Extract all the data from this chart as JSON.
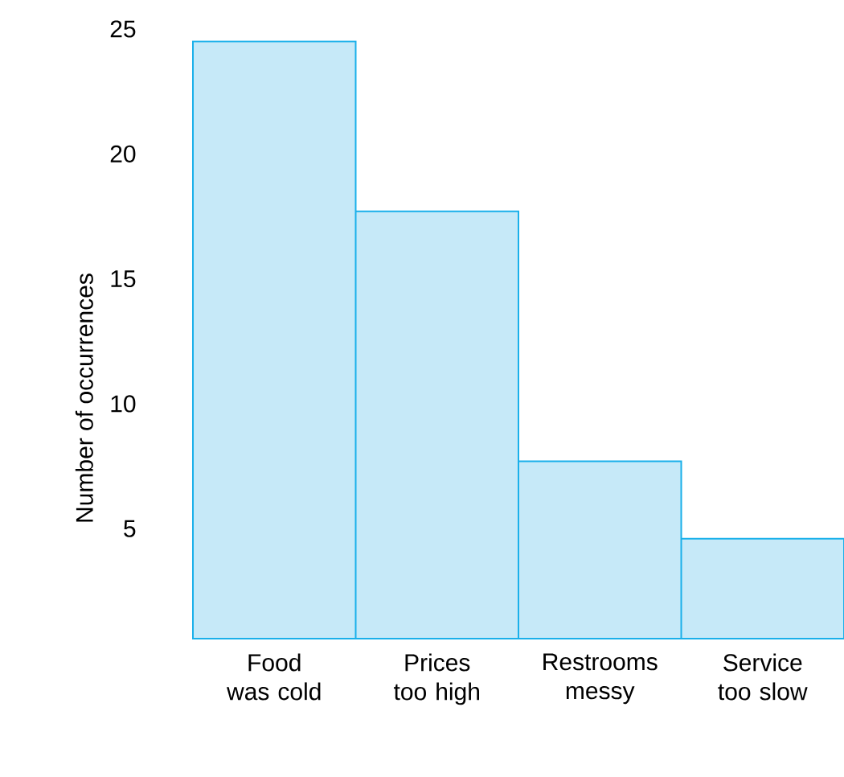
{
  "chart_data": {
    "type": "bar",
    "ylabel": "Number of occurrences",
    "categories": [
      "Food was cold",
      "Prices too high",
      "Restrooms messy",
      "Service too slow"
    ],
    "values": [
      24.5,
      17.7,
      7.7,
      4.6
    ],
    "color": "#c6e9f8",
    "ylim": [
      0.6,
      25
    ],
    "yticks": [
      5,
      10,
      15,
      20,
      25
    ]
  }
}
